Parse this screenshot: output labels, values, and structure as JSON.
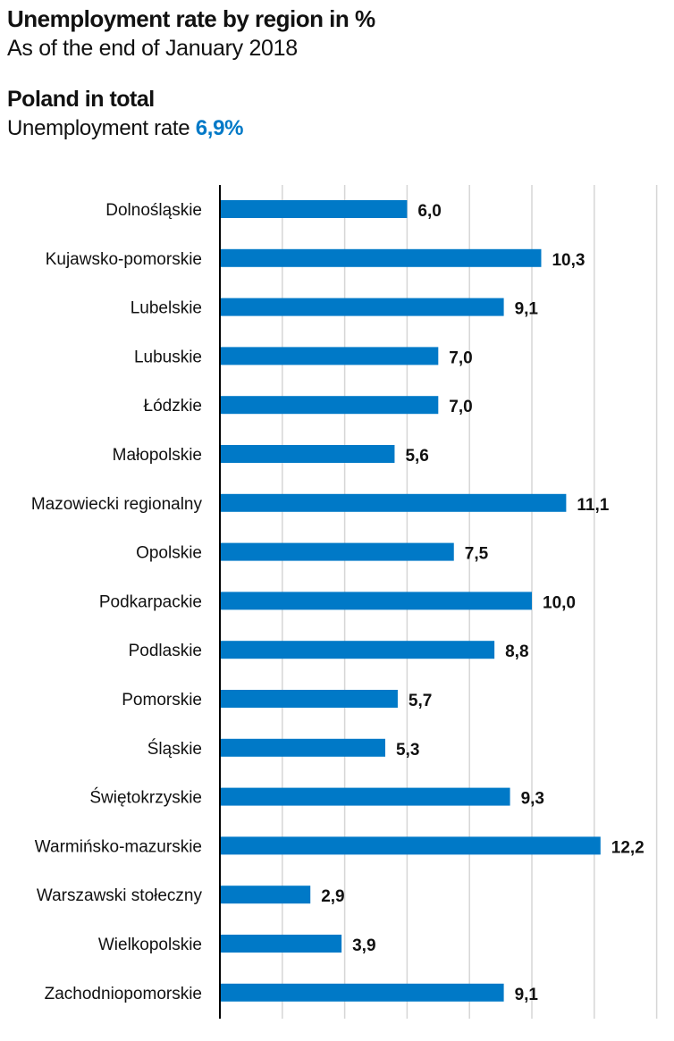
{
  "header": {
    "title": "Unemployment rate by region in %",
    "subtitle": "As of the end of January 2018"
  },
  "total": {
    "heading": "Poland in total",
    "label": "Unemployment rate",
    "value": "6,9%"
  },
  "colors": {
    "bar": "#0079c7",
    "accent": "#0079c7",
    "grid": "#d6d6d6",
    "axis": "#000000"
  },
  "chart_data": {
    "type": "bar",
    "orientation": "horizontal",
    "categories": [
      "Dolnośląskie",
      "Kujawsko-pomorskie",
      "Lubelskie",
      "Lubuskie",
      "Łódzkie",
      "Małopolskie",
      "Mazowiecki regionalny",
      "Opolskie",
      "Podkarpackie",
      "Podlaskie",
      "Pomorskie",
      "Śląskie",
      "Świętokrzyskie",
      "Warmińsko-mazurskie",
      "Warszawski stołeczny",
      "Wielkopolskie",
      "Zachodniopomorskie"
    ],
    "values": [
      6.0,
      10.3,
      9.1,
      7.0,
      7.0,
      5.6,
      11.1,
      7.5,
      10.0,
      8.8,
      5.7,
      5.3,
      9.3,
      12.2,
      2.9,
      3.9,
      9.1
    ],
    "value_labels": [
      "6,0",
      "10,3",
      "9,1",
      "7,0",
      "7,0",
      "5,6",
      "11,1",
      "7,5",
      "10,0",
      "8,8",
      "5,7",
      "5,3",
      "9,3",
      "12,2",
      "2,9",
      "3,9",
      "9,1"
    ],
    "xlim": [
      0,
      14
    ],
    "grid_step": 2,
    "grid": true,
    "legend": "none"
  }
}
